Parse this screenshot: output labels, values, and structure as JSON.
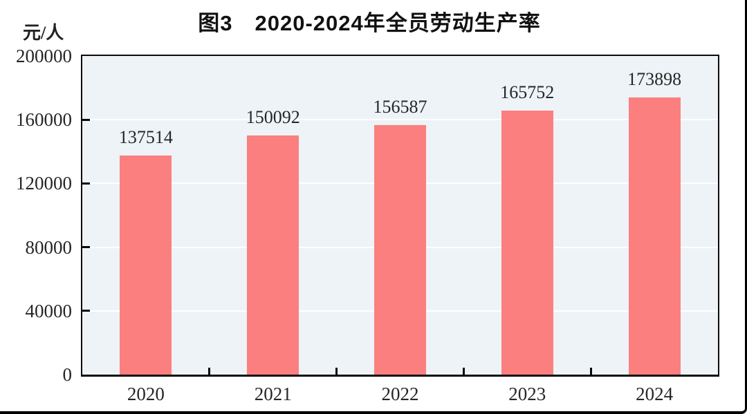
{
  "chart": {
    "title": "图3　2020-2024年全员劳动生产率",
    "unit_label": "元/人"
  },
  "chart_data": {
    "type": "bar",
    "title": "图3　2020-2024年全员劳动生产率",
    "xlabel": "",
    "ylabel": "元/人",
    "categories": [
      "2020",
      "2021",
      "2022",
      "2023",
      "2024"
    ],
    "values": [
      137514,
      150092,
      156587,
      165752,
      173898
    ],
    "data_labels": [
      "137514",
      "150092",
      "156587",
      "165752",
      "173898"
    ],
    "ylim": [
      0,
      200000
    ],
    "yticks": [
      0,
      40000,
      80000,
      120000,
      160000,
      200000
    ],
    "grid": "horizontal",
    "grid_color": "#FFFFFF",
    "legend": "none",
    "bar_color": "#FB7F7E",
    "plot_bg": "#EDF3F7",
    "axis_color": "#0A0A0A",
    "text_color": "#262626"
  }
}
